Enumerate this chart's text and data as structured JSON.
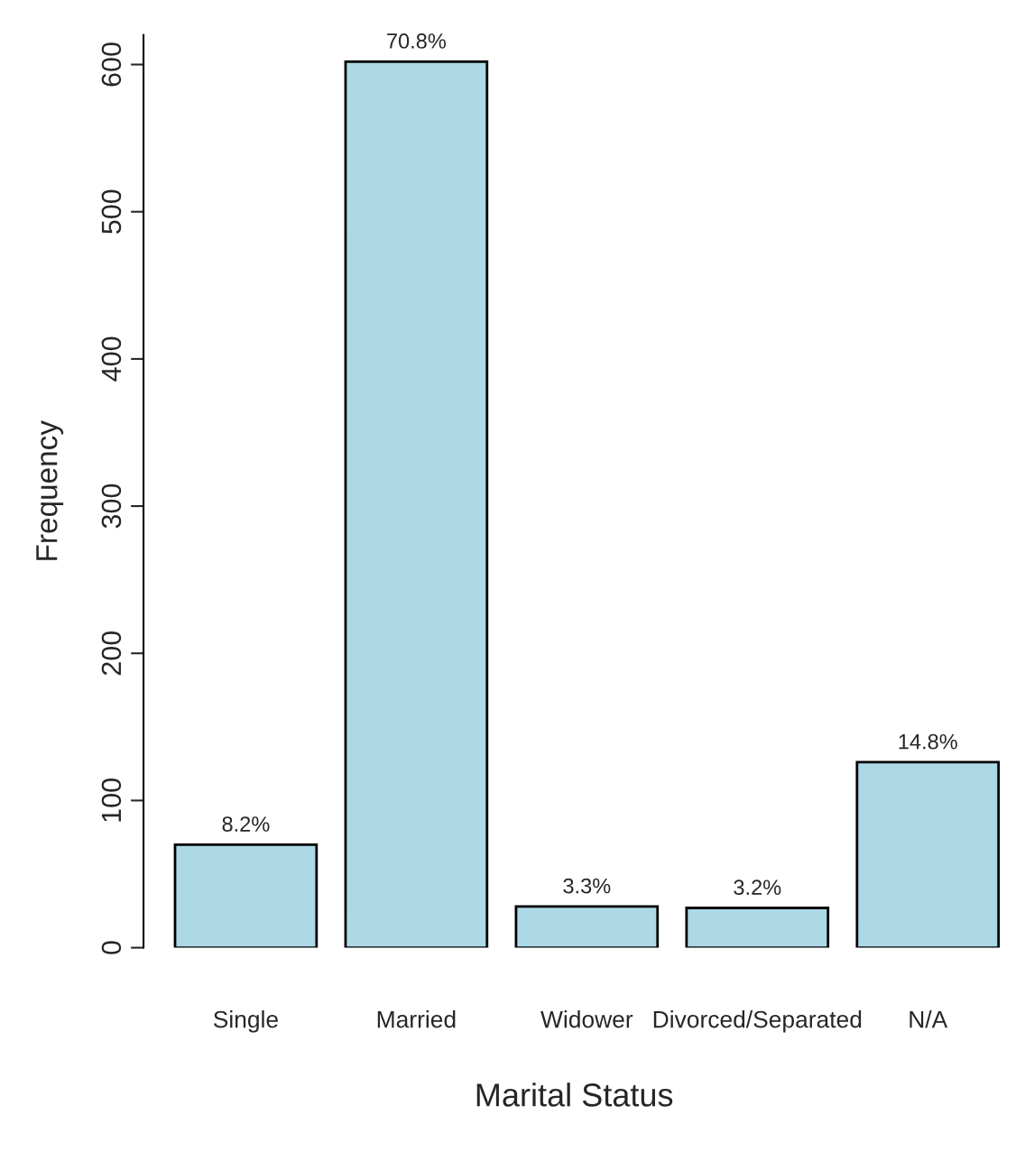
{
  "chart_data": {
    "type": "bar",
    "xlabel": "Marital Status",
    "ylabel": "Frequency",
    "categories": [
      "Single",
      "Married",
      "Widower",
      "Divorced/Separated",
      "N/A"
    ],
    "values": [
      70,
      602,
      28,
      27,
      126
    ],
    "annotations": [
      {
        "text": "8.2%",
        "x": "Single",
        "y": 70
      },
      {
        "text": "70.8%",
        "x": "Married",
        "y": 602
      },
      {
        "text": "3.3%",
        "x": "Widower",
        "y": 28
      },
      {
        "text": "3.2%",
        "x": "Divorced/Separated",
        "y": 27
      },
      {
        "text": "14.8%",
        "x": "N/A",
        "y": 126
      }
    ],
    "color": "#add8e6",
    "ylim": [
      0,
      620
    ],
    "yticks": [
      0,
      100,
      200,
      300,
      400,
      500,
      600
    ],
    "grid": false,
    "legend": false
  }
}
